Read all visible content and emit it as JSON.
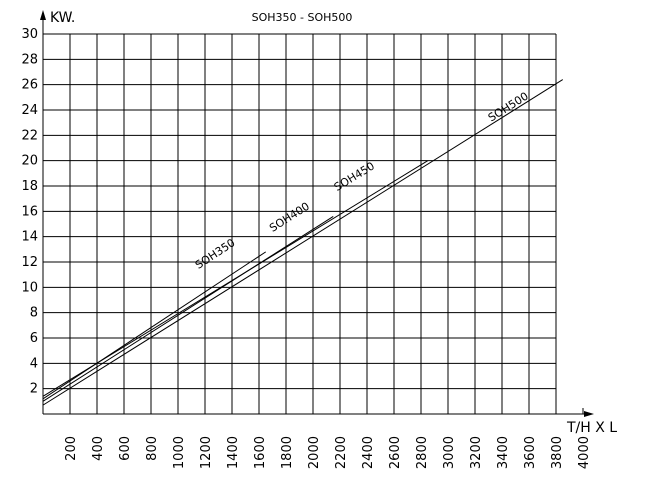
{
  "chart_data": {
    "type": "line",
    "title": "SOH350 - SOH500",
    "xlabel": "T/H X L",
    "ylabel": "KW.",
    "xlim": [
      0,
      4000
    ],
    "ylim": [
      0,
      30
    ],
    "x_ticks": [
      "200",
      "400",
      "600",
      "800",
      "1000",
      "1200",
      "1400",
      "1600",
      "1800",
      "2000",
      "2200",
      "2400",
      "2600",
      "2800",
      "3000",
      "3200",
      "3400",
      "3600",
      "3800",
      "4000"
    ],
    "y_ticks": [
      "2",
      "4",
      "6",
      "8",
      "10",
      "12",
      "14",
      "16",
      "18",
      "20",
      "22",
      "24",
      "26",
      "28",
      "30"
    ],
    "grid": true,
    "series": [
      {
        "name": "SOH350",
        "points": [
          [
            0,
            1.2
          ],
          [
            1650,
            12.8
          ]
        ],
        "label_at": [
          1290,
          12.4
        ]
      },
      {
        "name": "SOH400",
        "points": [
          [
            0,
            1.0
          ],
          [
            2150,
            15.6
          ]
        ],
        "label_at": [
          1840,
          15.3
        ]
      },
      {
        "name": "SOH450",
        "points": [
          [
            0,
            1.4
          ],
          [
            2850,
            20.0
          ]
        ],
        "label_at": [
          2320,
          18.5
        ]
      },
      {
        "name": "SOH500",
        "points": [
          [
            0,
            0.7
          ],
          [
            3850,
            26.4
          ]
        ],
        "label_at": [
          3460,
          24.0
        ]
      }
    ]
  }
}
